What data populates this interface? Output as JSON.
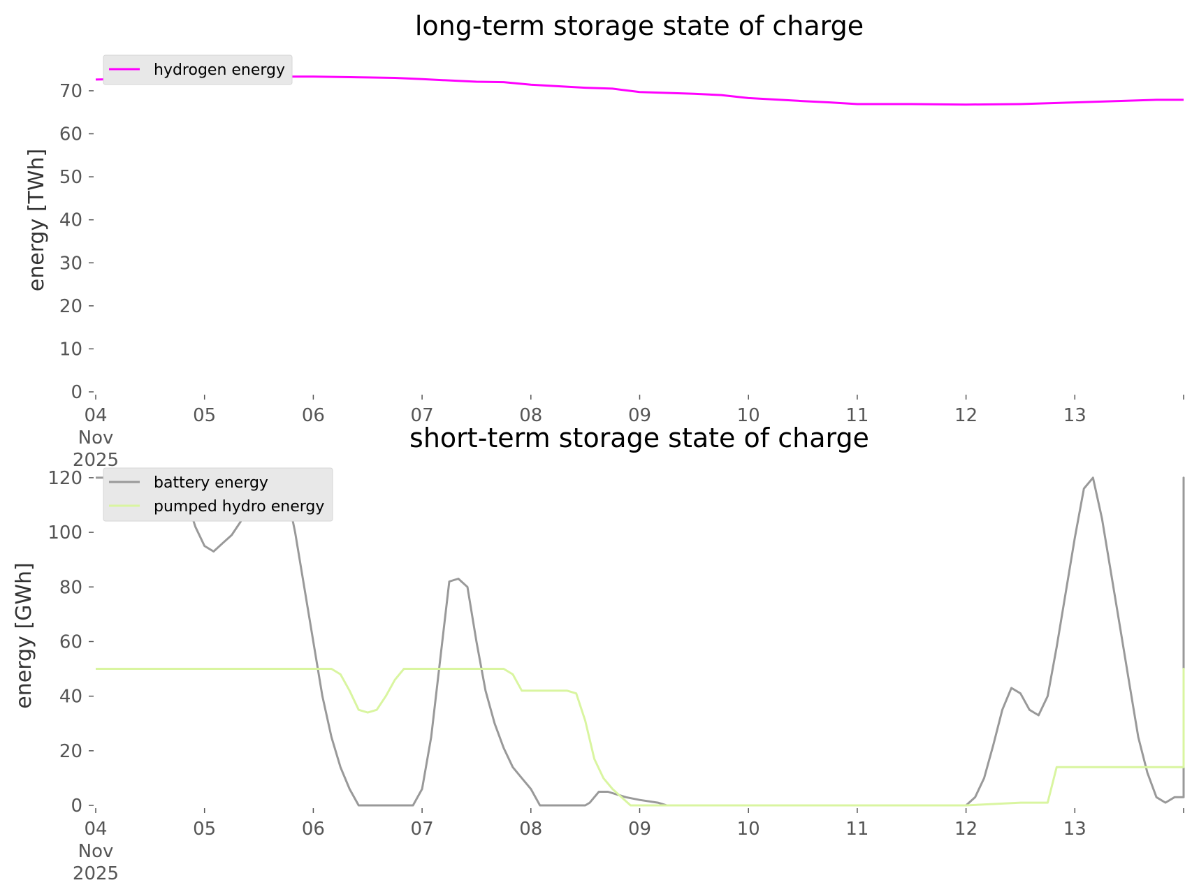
{
  "chart_data": [
    {
      "type": "line",
      "title": "long-term storage state of charge",
      "ylabel": "energy [TWh]",
      "xlabel": "",
      "x_start": "2025-11-04",
      "x_end": "2025-11-14",
      "xticks": [
        "2025-11-04",
        "2025-11-05",
        "2025-11-06",
        "2025-11-07",
        "2025-11-08",
        "2025-11-09",
        "2025-11-10",
        "2025-11-11",
        "2025-11-12",
        "2025-11-13"
      ],
      "xtick_labels": [
        "04",
        "05",
        "06",
        "07",
        "08",
        "09",
        "10",
        "11",
        "12",
        "13"
      ],
      "first_xtick_extra": [
        "Nov",
        "2025"
      ],
      "ylim": [
        0,
        76
      ],
      "yticks": [
        0,
        10,
        20,
        30,
        40,
        50,
        60,
        70
      ],
      "grid": false,
      "legend_position": "upper-left",
      "series": [
        {
          "name": "hydrogen energy",
          "color": "#ff00ff",
          "points": [
            [
              "2025-11-04 00:00",
              72.6
            ],
            [
              "2025-11-04 12:00",
              72.9
            ],
            [
              "2025-11-05 00:00",
              73.1
            ],
            [
              "2025-11-05 12:00",
              73.3
            ],
            [
              "2025-11-06 00:00",
              73.3
            ],
            [
              "2025-11-06 12:00",
              73.1
            ],
            [
              "2025-11-06 18:00",
              73.0
            ],
            [
              "2025-11-07 00:00",
              72.7
            ],
            [
              "2025-11-07 12:00",
              72.1
            ],
            [
              "2025-11-07 18:00",
              72.0
            ],
            [
              "2025-11-08 00:00",
              71.4
            ],
            [
              "2025-11-08 12:00",
              70.7
            ],
            [
              "2025-11-08 18:00",
              70.5
            ],
            [
              "2025-11-09 00:00",
              69.7
            ],
            [
              "2025-11-09 12:00",
              69.3
            ],
            [
              "2025-11-09 18:00",
              69.0
            ],
            [
              "2025-11-10 00:00",
              68.3
            ],
            [
              "2025-11-10 12:00",
              67.6
            ],
            [
              "2025-11-10 18:00",
              67.3
            ],
            [
              "2025-11-11 00:00",
              66.9
            ],
            [
              "2025-11-11 12:00",
              66.9
            ],
            [
              "2025-11-12 00:00",
              66.8
            ],
            [
              "2025-11-12 12:00",
              66.9
            ],
            [
              "2025-11-13 00:00",
              67.3
            ],
            [
              "2025-11-13 12:00",
              67.7
            ],
            [
              "2025-11-13 18:00",
              67.9
            ],
            [
              "2025-11-14 00:00",
              67.9
            ]
          ]
        }
      ]
    },
    {
      "type": "line",
      "title": "short-term storage state of charge",
      "ylabel": "energy [GWh]",
      "xlabel": "",
      "x_start": "2025-11-04",
      "x_end": "2025-11-14",
      "xticks": [
        "2025-11-04",
        "2025-11-05",
        "2025-11-06",
        "2025-11-07",
        "2025-11-08",
        "2025-11-09",
        "2025-11-10",
        "2025-11-11",
        "2025-11-12",
        "2025-11-13"
      ],
      "xtick_labels": [
        "04",
        "05",
        "06",
        "07",
        "08",
        "09",
        "10",
        "11",
        "12",
        "13"
      ],
      "first_xtick_extra": [
        "Nov",
        "2025"
      ],
      "ylim": [
        0,
        121
      ],
      "yticks": [
        0,
        20,
        40,
        60,
        80,
        100,
        120
      ],
      "grid": false,
      "legend_position": "upper-left",
      "series": [
        {
          "name": "battery energy",
          "color": "#999999",
          "points": [
            [
              "2025-11-04 00:00",
              120
            ],
            [
              "2025-11-04 06:00",
              120
            ],
            [
              "2025-11-04 08:00",
              112
            ],
            [
              "2025-11-04 10:00",
              110
            ],
            [
              "2025-11-04 12:00",
              110
            ],
            [
              "2025-11-04 14:00",
              113
            ],
            [
              "2025-11-04 16:00",
              120
            ],
            [
              "2025-11-04 18:00",
              120
            ],
            [
              "2025-11-04 20:00",
              112
            ],
            [
              "2025-11-04 22:00",
              102
            ],
            [
              "2025-11-05 00:00",
              95
            ],
            [
              "2025-11-05 02:00",
              93
            ],
            [
              "2025-11-05 04:00",
              96
            ],
            [
              "2025-11-05 06:00",
              99
            ],
            [
              "2025-11-05 08:00",
              104
            ],
            [
              "2025-11-05 10:00",
              120
            ],
            [
              "2025-11-05 12:00",
              120
            ],
            [
              "2025-11-05 14:00",
              120
            ],
            [
              "2025-11-05 16:00",
              120
            ],
            [
              "2025-11-05 18:00",
              116
            ],
            [
              "2025-11-05 20:00",
              100
            ],
            [
              "2025-11-05 22:00",
              80
            ],
            [
              "2025-11-06 00:00",
              60
            ],
            [
              "2025-11-06 02:00",
              40
            ],
            [
              "2025-11-06 04:00",
              25
            ],
            [
              "2025-11-06 06:00",
              14
            ],
            [
              "2025-11-06 08:00",
              6
            ],
            [
              "2025-11-06 10:00",
              0
            ],
            [
              "2025-11-06 16:00",
              0
            ],
            [
              "2025-11-06 22:00",
              0
            ],
            [
              "2025-11-07 00:00",
              6
            ],
            [
              "2025-11-07 02:00",
              25
            ],
            [
              "2025-11-07 06:00",
              82
            ],
            [
              "2025-11-07 08:00",
              83
            ],
            [
              "2025-11-07 10:00",
              80
            ],
            [
              "2025-11-07 12:00",
              60
            ],
            [
              "2025-11-07 14:00",
              42
            ],
            [
              "2025-11-07 16:00",
              30
            ],
            [
              "2025-11-07 18:00",
              21
            ],
            [
              "2025-11-07 20:00",
              14
            ],
            [
              "2025-11-07 22:00",
              10
            ],
            [
              "2025-11-08 00:00",
              6
            ],
            [
              "2025-11-08 02:00",
              0
            ],
            [
              "2025-11-08 12:00",
              0
            ],
            [
              "2025-11-08 13:00",
              1
            ],
            [
              "2025-11-08 15:00",
              5
            ],
            [
              "2025-11-08 17:00",
              5
            ],
            [
              "2025-11-08 19:00",
              4
            ],
            [
              "2025-11-08 21:00",
              3
            ],
            [
              "2025-11-09 00:00",
              2
            ],
            [
              "2025-11-09 04:00",
              1
            ],
            [
              "2025-11-09 06:00",
              0
            ],
            [
              "2025-11-10 00:00",
              0
            ],
            [
              "2025-11-11 00:00",
              0
            ],
            [
              "2025-11-12 00:00",
              0
            ],
            [
              "2025-11-12 02:00",
              3
            ],
            [
              "2025-11-12 04:00",
              10
            ],
            [
              "2025-11-12 06:00",
              22
            ],
            [
              "2025-11-12 08:00",
              35
            ],
            [
              "2025-11-12 10:00",
              43
            ],
            [
              "2025-11-12 12:00",
              41
            ],
            [
              "2025-11-12 14:00",
              35
            ],
            [
              "2025-11-12 16:00",
              33
            ],
            [
              "2025-11-12 18:00",
              40
            ],
            [
              "2025-11-12 20:00",
              58
            ],
            [
              "2025-11-12 22:00",
              78
            ],
            [
              "2025-11-13 00:00",
              98
            ],
            [
              "2025-11-13 02:00",
              116
            ],
            [
              "2025-11-13 04:00",
              120
            ],
            [
              "2025-11-13 06:00",
              105
            ],
            [
              "2025-11-13 08:00",
              85
            ],
            [
              "2025-11-13 10:00",
              65
            ],
            [
              "2025-11-13 12:00",
              45
            ],
            [
              "2025-11-13 14:00",
              25
            ],
            [
              "2025-11-13 16:00",
              12
            ],
            [
              "2025-11-13 18:00",
              3
            ],
            [
              "2025-11-13 20:00",
              1
            ],
            [
              "2025-11-13 22:00",
              3
            ],
            [
              "2025-11-14 00:00",
              3
            ],
            [
              "2025-11-14 06:00",
              3
            ],
            [
              "2025-11-14 08:00",
              3
            ],
            [
              "2025-11-14 10:00",
              20
            ],
            [
              "2025-11-14 12:00",
              42
            ],
            [
              "2025-11-14 14:00",
              65
            ],
            [
              "2025-11-14 16:00",
              88
            ],
            [
              "2025-11-14 18:00",
              98
            ],
            [
              "2025-11-14 20:00",
              98
            ],
            [
              "2025-11-15 00:00",
              98
            ],
            [
              "2025-11-15 02:00",
              98
            ],
            [
              "2025-11-15 04:00",
              100
            ],
            [
              "2025-11-15 06:00",
              104
            ],
            [
              "2025-11-15 08:00",
              112
            ],
            [
              "2025-11-15 10:00",
              120
            ],
            [
              "2025-11-15 12:00",
              114
            ],
            [
              "2025-11-15 14:00",
              108
            ],
            [
              "2025-11-15 16:00",
              103
            ],
            [
              "2025-11-15 18:00",
              97
            ],
            [
              "2025-11-15 20:00",
              90
            ],
            [
              "2025-11-15 22:00",
              81
            ],
            [
              "2025-11-16 00:00",
              66
            ],
            [
              "2025-11-16 02:00",
              47
            ],
            [
              "2025-11-16 04:00",
              43
            ],
            [
              "2025-11-16 06:00",
              50
            ],
            [
              "2025-11-16 08:00",
              70
            ],
            [
              "2025-11-16 10:00",
              92
            ],
            [
              "2025-11-16 12:00",
              110
            ],
            [
              "2025-11-16 14:00",
              120
            ],
            [
              "2025-11-16 16:00",
              120
            ],
            [
              "2025-11-16 18:00",
              120
            ],
            [
              "2025-11-16 20:00",
              120
            ],
            [
              "2025-11-16 22:00",
              115
            ],
            [
              "2025-11-17 00:00",
              105
            ],
            [
              "2025-11-17 02:00",
              95
            ],
            [
              "2025-11-17 04:00",
              80
            ],
            [
              "2025-11-17 06:00",
              62
            ],
            [
              "2025-11-17 08:00",
              45
            ]
          ]
        },
        {
          "name": "pumped hydro energy",
          "color": "#d9f5a0",
          "points": [
            [
              "2025-11-04 00:00",
              50
            ],
            [
              "2025-11-06 00:00",
              50
            ],
            [
              "2025-11-06 04:00",
              50
            ],
            [
              "2025-11-06 06:00",
              48
            ],
            [
              "2025-11-06 08:00",
              42
            ],
            [
              "2025-11-06 10:00",
              35
            ],
            [
              "2025-11-06 12:00",
              34
            ],
            [
              "2025-11-06 14:00",
              35
            ],
            [
              "2025-11-06 16:00",
              40
            ],
            [
              "2025-11-06 18:00",
              46
            ],
            [
              "2025-11-06 20:00",
              50
            ],
            [
              "2025-11-07 00:00",
              50
            ],
            [
              "2025-11-07 18:00",
              50
            ],
            [
              "2025-11-07 20:00",
              48
            ],
            [
              "2025-11-07 22:00",
              42
            ],
            [
              "2025-11-08 00:00",
              42
            ],
            [
              "2025-11-08 08:00",
              42
            ],
            [
              "2025-11-08 10:00",
              41
            ],
            [
              "2025-11-08 12:00",
              31
            ],
            [
              "2025-11-08 14:00",
              17
            ],
            [
              "2025-11-08 16:00",
              10
            ],
            [
              "2025-11-08 18:00",
              6
            ],
            [
              "2025-11-08 20:00",
              3
            ],
            [
              "2025-11-08 22:00",
              0
            ],
            [
              "2025-11-09 00:00",
              0
            ],
            [
              "2025-11-12 00:00",
              0
            ],
            [
              "2025-11-12 12:00",
              1
            ],
            [
              "2025-11-12 16:00",
              1
            ],
            [
              "2025-11-12 18:00",
              1
            ],
            [
              "2025-11-12 20:00",
              14
            ],
            [
              "2025-11-13 00:00",
              14
            ],
            [
              "2025-11-14 00:00",
              14
            ],
            [
              "2025-11-14 08:00",
              14
            ],
            [
              "2025-11-14 10:00",
              20
            ],
            [
              "2025-11-14 12:00",
              32
            ],
            [
              "2025-11-14 14:00",
              40
            ],
            [
              "2025-11-14 16:00",
              41
            ],
            [
              "2025-11-14 20:00",
              41
            ],
            [
              "2025-11-15 00:00",
              42
            ],
            [
              "2025-11-15 02:00",
              44
            ],
            [
              "2025-11-15 04:00",
              46
            ],
            [
              "2025-11-15 06:00",
              50
            ],
            [
              "2025-11-15 08:00",
              46
            ],
            [
              "2025-11-15 10:00",
              43
            ],
            [
              "2025-11-15 12:00",
              41
            ],
            [
              "2025-11-15 14:00",
              39
            ],
            [
              "2025-11-15 16:00",
              38
            ],
            [
              "2025-11-15 18:00",
              37
            ],
            [
              "2025-11-15 20:00",
              36
            ],
            [
              "2025-11-15 22:00",
              35
            ],
            [
              "2025-11-16 00:00",
              35
            ],
            [
              "2025-11-16 02:00",
              37
            ],
            [
              "2025-11-16 04:00",
              45
            ],
            [
              "2025-11-16 06:00",
              50
            ],
            [
              "2025-11-17 08:00",
              50
            ]
          ]
        }
      ]
    }
  ]
}
